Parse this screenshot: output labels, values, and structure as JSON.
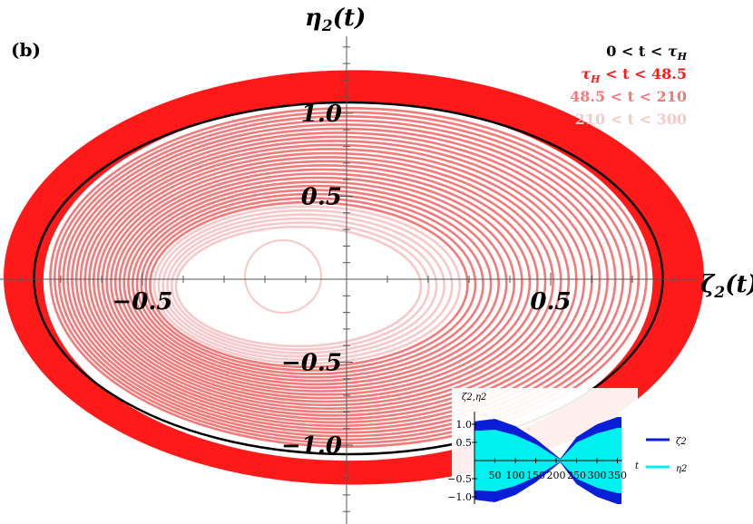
{
  "chart_data": {
    "type": "line",
    "panel_label": "(b)",
    "xlabel": "ζ2(t)",
    "ylabel": "η2(t)",
    "xlim": [
      -1.3,
      1.5
    ],
    "ylim": [
      -1.5,
      1.6
    ],
    "x_ticks": [
      {
        "value": -0.5,
        "label": "−0.5"
      },
      {
        "value": 0.5,
        "label": "0.5"
      }
    ],
    "y_ticks": [
      {
        "value": 1.0,
        "label": "1.0"
      },
      {
        "value": 0.5,
        "label": "0.5"
      },
      {
        "value": -0.5,
        "label": "−0.5"
      },
      {
        "value": -1.0,
        "label": "−1.0"
      }
    ],
    "grid": false,
    "legend_position": "top-right",
    "series": [
      {
        "name": "0 < t < τH",
        "color": "#000000",
        "outer_radius_x": 0.77,
        "outer_radius_y": 1.06
      },
      {
        "name": "τH < t < 48.5",
        "color": "#ff1a1a",
        "outer_radius_x": 0.85,
        "outer_radius_y": 1.23
      },
      {
        "name": "48.5 < t < 210",
        "color": "#f47a7a",
        "outer_radius_x": 0.73,
        "outer_radius_y": 1.02
      },
      {
        "name": "210 < t < 300",
        "color": "#f7c8c8",
        "outer_radius_x": 0.3,
        "outer_radius_y": 0.36
      }
    ],
    "inset": {
      "ylabel": "ζ2,η2",
      "xlabel": "t",
      "xlim": [
        0,
        360
      ],
      "ylim": [
        -1.2,
        1.3
      ],
      "x_ticks": [
        50,
        100,
        150,
        200,
        250,
        300,
        350
      ],
      "y_ticks": [
        {
          "value": 1.0,
          "label": "1.0"
        },
        {
          "value": 0.5,
          "label": "0.5"
        },
        {
          "value": -0.5,
          "label": "−0.5"
        },
        {
          "value": -1.0,
          "label": "−1.0"
        }
      ],
      "series": [
        {
          "name": "ζ2",
          "color": "#0a1ed8",
          "envelope_t": [
            0,
            50,
            100,
            150,
            210,
            250,
            300,
            350
          ],
          "envelope_amp": [
            1.08,
            1.15,
            0.95,
            0.6,
            0.05,
            0.65,
            1.0,
            1.2
          ]
        },
        {
          "name": "η2",
          "color": "#00f0f0",
          "envelope_t": [
            0,
            50,
            100,
            150,
            210,
            250,
            300,
            350
          ],
          "envelope_amp": [
            0.82,
            0.85,
            0.7,
            0.45,
            0.03,
            0.5,
            0.75,
            0.9
          ]
        }
      ]
    }
  }
}
